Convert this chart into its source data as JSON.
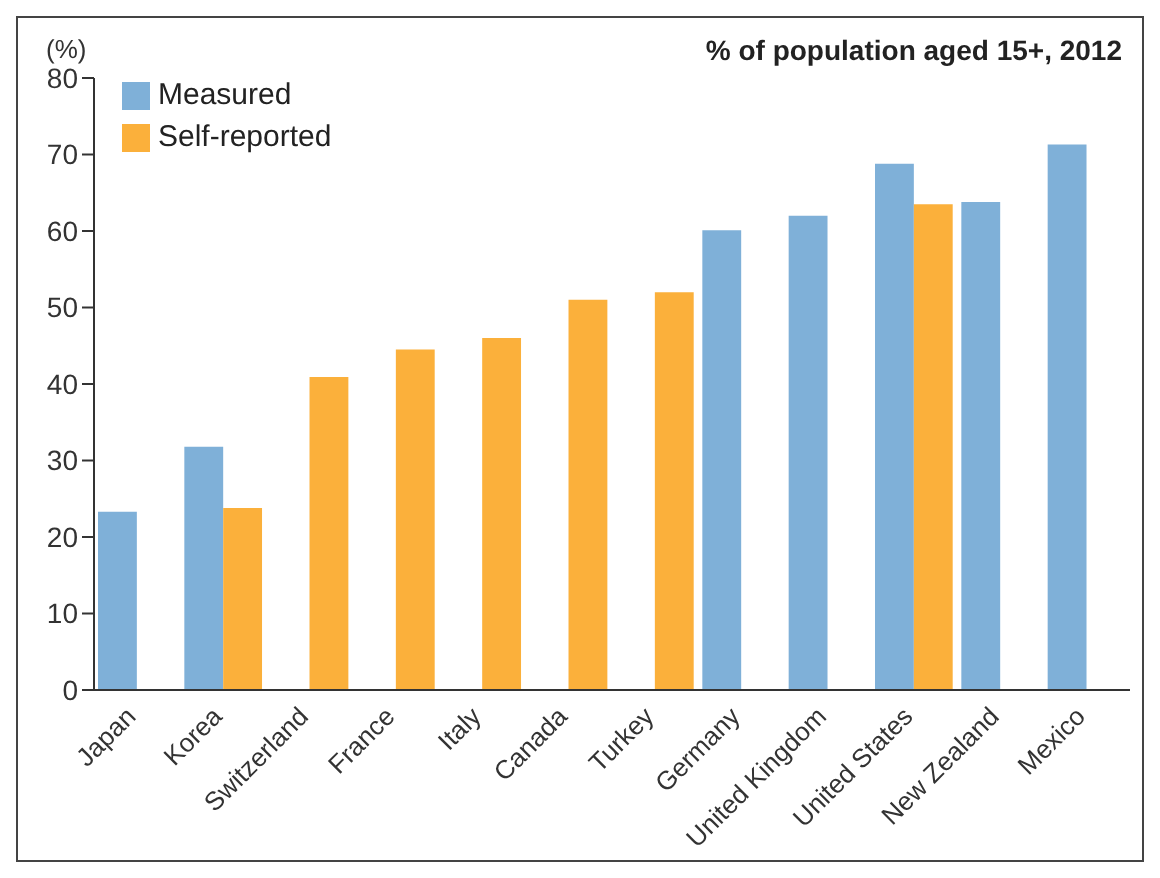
{
  "chart_data": {
    "type": "bar",
    "title": "% of population aged 15+, 2012",
    "ylabel": "(%)",
    "categories": [
      "Japan",
      "Korea",
      "Switzerland",
      "France",
      "Italy",
      "Canada",
      "Turkey",
      "Germany",
      "United Kingdom",
      "United States",
      "New Zealand",
      "Mexico"
    ],
    "series": [
      {
        "name": "Measured",
        "color": "#7fb0d8",
        "values": [
          23.3,
          31.8,
          null,
          null,
          null,
          null,
          null,
          60.1,
          62,
          68.8,
          63.8,
          71.3
        ]
      },
      {
        "name": "Self-reported",
        "color": "#fbb03b",
        "values": [
          null,
          23.8,
          40.9,
          44.5,
          46,
          51,
          52,
          null,
          null,
          63.5,
          null,
          null
        ]
      }
    ],
    "ylim": [
      0,
      80
    ],
    "yticks": [
      0,
      10,
      20,
      30,
      40,
      50,
      60,
      70,
      80
    ],
    "grid": false,
    "legend": "top left"
  }
}
